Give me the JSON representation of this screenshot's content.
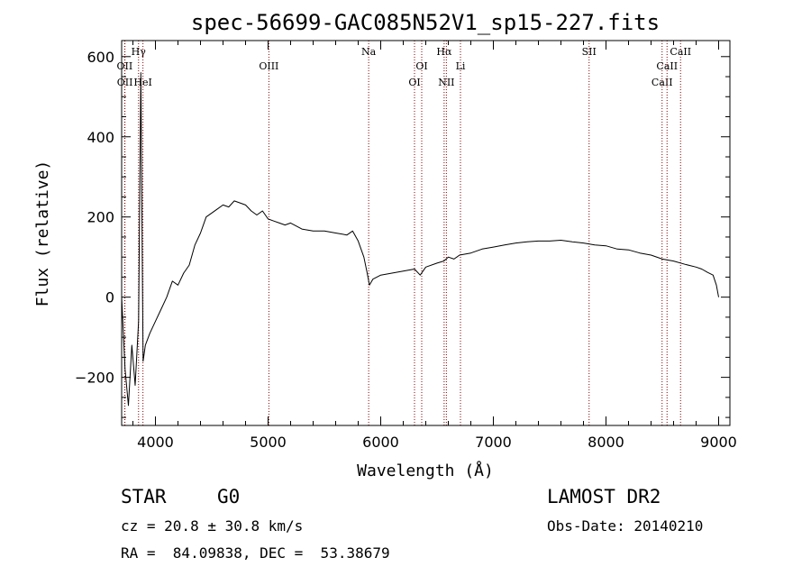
{
  "chart_data": {
    "type": "line",
    "title": "spec-56699-GAC085N52V1_sp15-227.fits",
    "xlabel": "Wavelength (Å)",
    "ylabel": "Flux (relative)",
    "xlim": [
      3700,
      9100
    ],
    "ylim": [
      -320,
      640
    ],
    "xticks": [
      4000,
      5000,
      6000,
      7000,
      8000,
      9000
    ],
    "yticks": [
      -200,
      0,
      200,
      400,
      600
    ],
    "grid": false,
    "line_color": "#000000",
    "marker_color": "#8b0000",
    "series": [
      {
        "x": [
          3700,
          3730,
          3760,
          3790,
          3820,
          3850,
          3870,
          3890,
          3910,
          3950,
          4000,
          4050,
          4100,
          4150,
          4200,
          4250,
          4300,
          4350,
          4400,
          4450,
          4500,
          4550,
          4600,
          4650,
          4700,
          4750,
          4800,
          4850,
          4900,
          4950,
          5000,
          5050,
          5100,
          5150,
          5200,
          5300,
          5400,
          5500,
          5600,
          5700,
          5750,
          5800,
          5850,
          5880,
          5900,
          5930,
          6000,
          6100,
          6200,
          6300,
          6350,
          6400,
          6500,
          6560,
          6600,
          6650,
          6700,
          6800,
          6900,
          7000,
          7100,
          7200,
          7300,
          7400,
          7500,
          7600,
          7700,
          7800,
          7900,
          8000,
          8100,
          8200,
          8300,
          8400,
          8500,
          8600,
          8700,
          8800,
          8850,
          8900,
          8950,
          8980,
          9000
        ],
        "y": [
          0,
          -180,
          -270,
          -120,
          -220,
          -60,
          560,
          -160,
          -120,
          -90,
          -60,
          -30,
          0,
          40,
          30,
          60,
          80,
          130,
          160,
          200,
          210,
          220,
          230,
          225,
          240,
          235,
          230,
          215,
          205,
          215,
          195,
          190,
          185,
          180,
          185,
          170,
          165,
          165,
          160,
          155,
          165,
          140,
          100,
          60,
          30,
          45,
          55,
          60,
          65,
          70,
          55,
          75,
          85,
          90,
          100,
          95,
          105,
          110,
          120,
          125,
          130,
          135,
          138,
          140,
          140,
          142,
          138,
          135,
          130,
          128,
          120,
          118,
          110,
          105,
          95,
          90,
          82,
          75,
          70,
          62,
          55,
          30,
          0
        ]
      }
    ],
    "lines": [
      {
        "label": "OII",
        "x": 3727,
        "row": 2
      },
      {
        "label": "OII",
        "x": 3729,
        "row": 3
      },
      {
        "label": "Hγ",
        "x": 3850,
        "row": 1
      },
      {
        "label": "HeI",
        "x": 3889,
        "row": 3
      },
      {
        "label": "OIII",
        "x": 5007,
        "row": 2
      },
      {
        "label": "Na",
        "x": 5893,
        "row": 1
      },
      {
        "label": "OI",
        "x": 6300,
        "row": 3
      },
      {
        "label": "OI",
        "x": 6364,
        "row": 2
      },
      {
        "label": "Hα",
        "x": 6563,
        "row": 1
      },
      {
        "label": "NII",
        "x": 6583,
        "row": 3
      },
      {
        "label": "Li",
        "x": 6708,
        "row": 2
      },
      {
        "label": "SII",
        "x": 7850,
        "row": 1
      },
      {
        "label": "CaII",
        "x": 8498,
        "row": 3
      },
      {
        "label": "CaII",
        "x": 8542,
        "row": 2
      },
      {
        "label": "CaII",
        "x": 8662,
        "row": 1
      }
    ]
  },
  "info": {
    "object_class": "STAR",
    "subclass": "G0",
    "survey": "LAMOST DR2",
    "velocity": "cz = 20.8 ± 30.8 km/s",
    "obs_date": "Obs-Date: 20140210",
    "coords": "RA =  84.09838, DEC =  53.38679"
  }
}
